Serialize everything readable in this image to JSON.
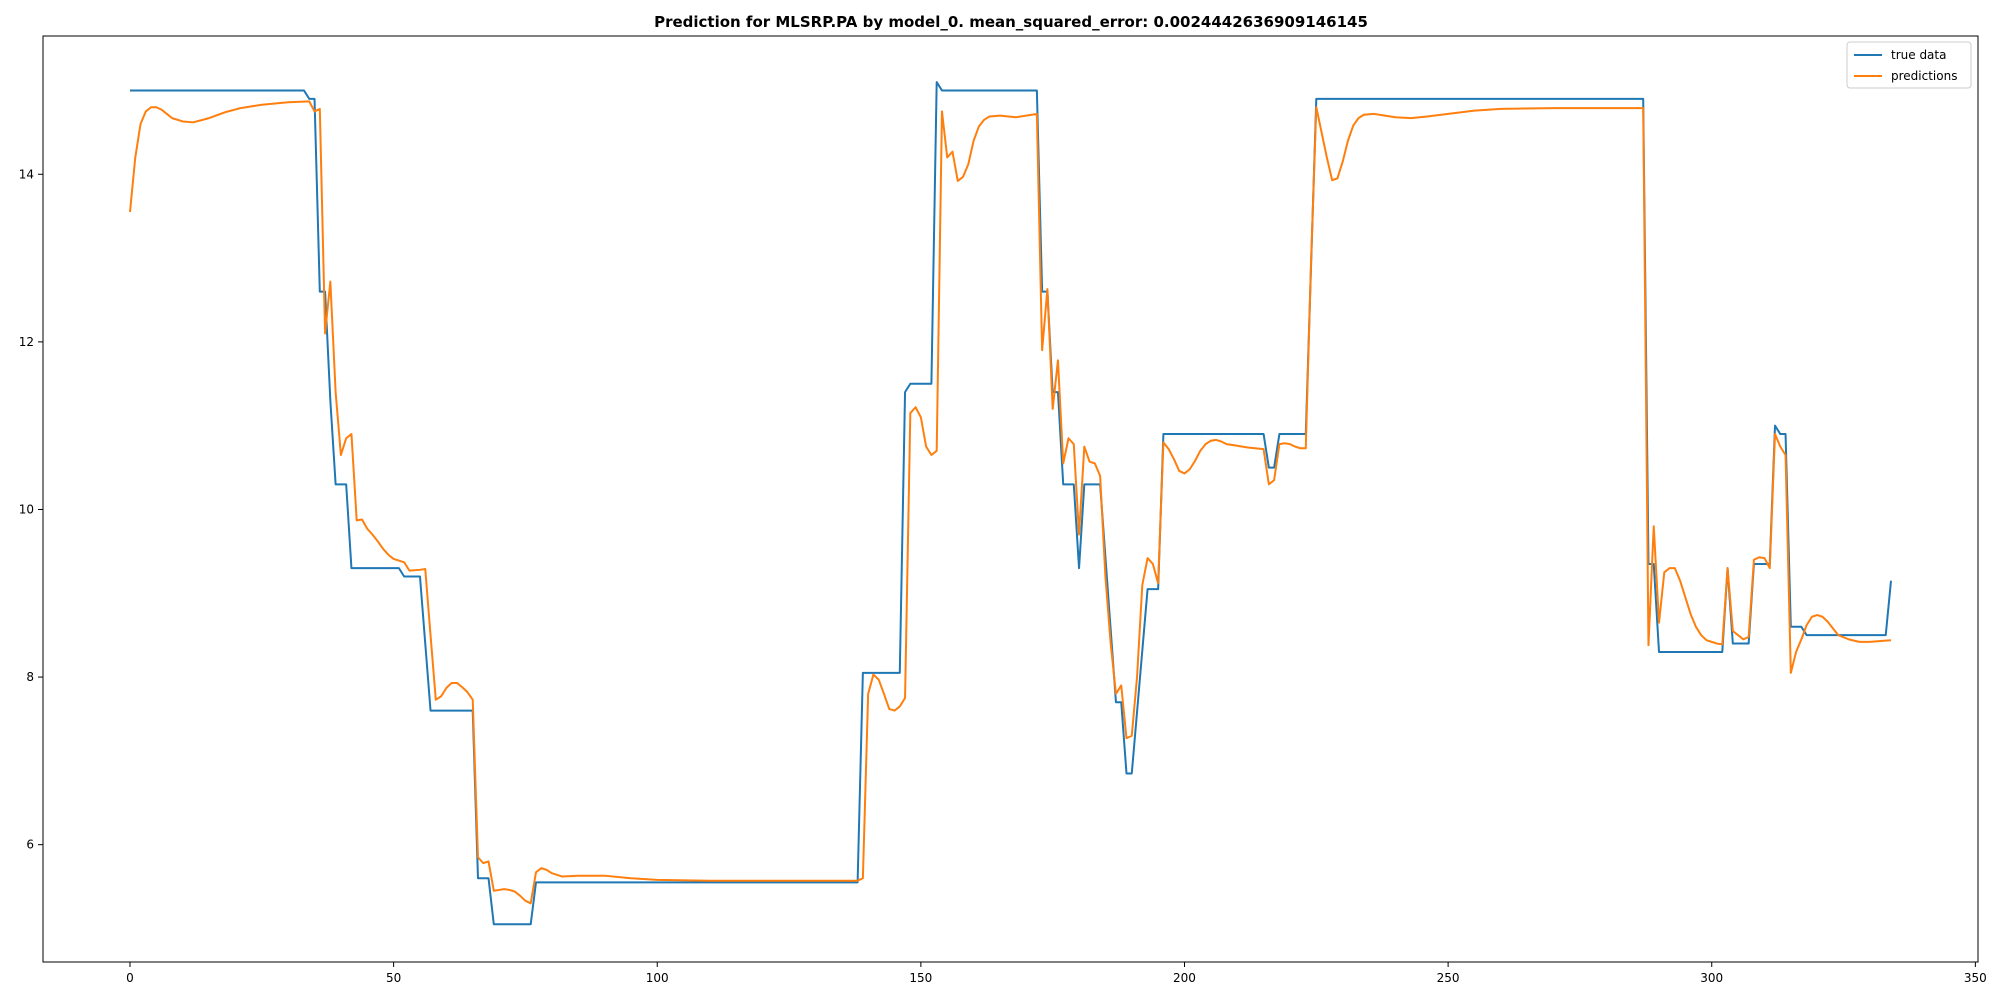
{
  "chart_data": {
    "type": "line",
    "title": "Prediction for MLSRP.PA by model_0. mean_squared_error: 0.0024442636909146145",
    "xlabel": "",
    "ylabel": "",
    "xlim": [
      -16.5,
      350.5
    ],
    "ylim": [
      4.6,
      15.65
    ],
    "x_ticks": [
      0,
      50,
      100,
      150,
      200,
      250,
      300,
      350
    ],
    "y_ticks": [
      6,
      8,
      10,
      12,
      14
    ],
    "grid": false,
    "legend_position": "top-right",
    "series": [
      {
        "name": "true data",
        "color": "#1f77b4",
        "points": [
          [
            0,
            15.0
          ],
          [
            33,
            15.0
          ],
          [
            34,
            14.9
          ],
          [
            35,
            14.9
          ],
          [
            36,
            12.6
          ],
          [
            37,
            12.6
          ],
          [
            38,
            11.3
          ],
          [
            39,
            10.3
          ],
          [
            41,
            10.3
          ],
          [
            42,
            9.3
          ],
          [
            51,
            9.3
          ],
          [
            52,
            9.2
          ],
          [
            55,
            9.2
          ],
          [
            57,
            7.6
          ],
          [
            65,
            7.6
          ],
          [
            66,
            5.6
          ],
          [
            68,
            5.6
          ],
          [
            69,
            5.05
          ],
          [
            76,
            5.05
          ],
          [
            77,
            5.55
          ],
          [
            138,
            5.55
          ],
          [
            139,
            8.05
          ],
          [
            146,
            8.05
          ],
          [
            147,
            11.4
          ],
          [
            148,
            11.5
          ],
          [
            152,
            11.5
          ],
          [
            153,
            15.1
          ],
          [
            154,
            15.0
          ],
          [
            172,
            15.0
          ],
          [
            173,
            12.6
          ],
          [
            174,
            12.6
          ],
          [
            175,
            11.4
          ],
          [
            176,
            11.4
          ],
          [
            177,
            10.3
          ],
          [
            179,
            10.3
          ],
          [
            180,
            9.3
          ],
          [
            181,
            10.3
          ],
          [
            184,
            10.3
          ],
          [
            187,
            7.7
          ],
          [
            188,
            7.7
          ],
          [
            189,
            6.85
          ],
          [
            190,
            6.85
          ],
          [
            193,
            9.05
          ],
          [
            195,
            9.05
          ],
          [
            196,
            10.9
          ],
          [
            215,
            10.9
          ],
          [
            216,
            10.5
          ],
          [
            217,
            10.5
          ],
          [
            218,
            10.9
          ],
          [
            223,
            10.9
          ],
          [
            225,
            14.9
          ],
          [
            287,
            14.9
          ],
          [
            288,
            9.35
          ],
          [
            289,
            9.35
          ],
          [
            290,
            8.3
          ],
          [
            302,
            8.3
          ],
          [
            303,
            9.3
          ],
          [
            304,
            8.4
          ],
          [
            307,
            8.4
          ],
          [
            308,
            9.35
          ],
          [
            311,
            9.35
          ],
          [
            312,
            11.0
          ],
          [
            313,
            10.9
          ],
          [
            314,
            10.9
          ],
          [
            315,
            8.6
          ],
          [
            317,
            8.6
          ],
          [
            318,
            8.5
          ],
          [
            333,
            8.5
          ],
          [
            334,
            9.15
          ]
        ]
      },
      {
        "name": "predictions",
        "color": "#ff7f0e",
        "points": [
          [
            0,
            13.55
          ],
          [
            1,
            14.2
          ],
          [
            2,
            14.6
          ],
          [
            3,
            14.75
          ],
          [
            4,
            14.8
          ],
          [
            5,
            14.8
          ],
          [
            6,
            14.77
          ],
          [
            7,
            14.72
          ],
          [
            8,
            14.67
          ],
          [
            10,
            14.63
          ],
          [
            12,
            14.62
          ],
          [
            15,
            14.67
          ],
          [
            18,
            14.74
          ],
          [
            21,
            14.79
          ],
          [
            25,
            14.83
          ],
          [
            30,
            14.86
          ],
          [
            34,
            14.87
          ],
          [
            35,
            14.75
          ],
          [
            36,
            14.78
          ],
          [
            37,
            12.1
          ],
          [
            38,
            12.72
          ],
          [
            39,
            11.4
          ],
          [
            40,
            10.65
          ],
          [
            41,
            10.85
          ],
          [
            42,
            10.9
          ],
          [
            43,
            9.87
          ],
          [
            44,
            9.88
          ],
          [
            45,
            9.77
          ],
          [
            46,
            9.7
          ],
          [
            47,
            9.62
          ],
          [
            48,
            9.53
          ],
          [
            49,
            9.46
          ],
          [
            50,
            9.41
          ],
          [
            51,
            9.39
          ],
          [
            52,
            9.37
          ],
          [
            53,
            9.27
          ],
          [
            55,
            9.28
          ],
          [
            56,
            9.29
          ],
          [
            57,
            8.5
          ],
          [
            58,
            7.73
          ],
          [
            59,
            7.77
          ],
          [
            60,
            7.87
          ],
          [
            61,
            7.93
          ],
          [
            62,
            7.93
          ],
          [
            63,
            7.88
          ],
          [
            64,
            7.82
          ],
          [
            65,
            7.73
          ],
          [
            66,
            5.85
          ],
          [
            67,
            5.78
          ],
          [
            68,
            5.8
          ],
          [
            69,
            5.45
          ],
          [
            70,
            5.46
          ],
          [
            71,
            5.47
          ],
          [
            72,
            5.46
          ],
          [
            73,
            5.44
          ],
          [
            74,
            5.39
          ],
          [
            75,
            5.33
          ],
          [
            76,
            5.3
          ],
          [
            77,
            5.67
          ],
          [
            78,
            5.72
          ],
          [
            79,
            5.7
          ],
          [
            80,
            5.66
          ],
          [
            82,
            5.62
          ],
          [
            85,
            5.63
          ],
          [
            90,
            5.63
          ],
          [
            95,
            5.6
          ],
          [
            100,
            5.58
          ],
          [
            110,
            5.57
          ],
          [
            130,
            5.57
          ],
          [
            138,
            5.57
          ],
          [
            139,
            5.6
          ],
          [
            140,
            7.8
          ],
          [
            141,
            8.03
          ],
          [
            142,
            7.97
          ],
          [
            143,
            7.8
          ],
          [
            144,
            7.62
          ],
          [
            145,
            7.6
          ],
          [
            146,
            7.65
          ],
          [
            147,
            7.75
          ],
          [
            148,
            11.15
          ],
          [
            149,
            11.22
          ],
          [
            150,
            11.1
          ],
          [
            151,
            10.75
          ],
          [
            152,
            10.65
          ],
          [
            153,
            10.7
          ],
          [
            154,
            14.75
          ],
          [
            155,
            14.2
          ],
          [
            156,
            14.27
          ],
          [
            157,
            13.92
          ],
          [
            158,
            13.97
          ],
          [
            159,
            14.12
          ],
          [
            160,
            14.4
          ],
          [
            161,
            14.57
          ],
          [
            162,
            14.65
          ],
          [
            163,
            14.69
          ],
          [
            165,
            14.7
          ],
          [
            168,
            14.68
          ],
          [
            171,
            14.71
          ],
          [
            172,
            14.72
          ],
          [
            173,
            11.9
          ],
          [
            174,
            12.63
          ],
          [
            175,
            11.2
          ],
          [
            176,
            11.78
          ],
          [
            177,
            10.55
          ],
          [
            178,
            10.85
          ],
          [
            179,
            10.78
          ],
          [
            180,
            9.7
          ],
          [
            181,
            10.75
          ],
          [
            182,
            10.57
          ],
          [
            183,
            10.55
          ],
          [
            184,
            10.4
          ],
          [
            185,
            9.2
          ],
          [
            186,
            8.4
          ],
          [
            187,
            7.8
          ],
          [
            188,
            7.9
          ],
          [
            189,
            7.27
          ],
          [
            190,
            7.3
          ],
          [
            191,
            8.0
          ],
          [
            192,
            9.1
          ],
          [
            193,
            9.42
          ],
          [
            194,
            9.35
          ],
          [
            195,
            9.12
          ],
          [
            196,
            10.8
          ],
          [
            197,
            10.72
          ],
          [
            198,
            10.6
          ],
          [
            199,
            10.46
          ],
          [
            200,
            10.43
          ],
          [
            201,
            10.48
          ],
          [
            202,
            10.58
          ],
          [
            203,
            10.7
          ],
          [
            204,
            10.78
          ],
          [
            205,
            10.82
          ],
          [
            206,
            10.83
          ],
          [
            207,
            10.81
          ],
          [
            208,
            10.78
          ],
          [
            210,
            10.76
          ],
          [
            212,
            10.74
          ],
          [
            215,
            10.72
          ],
          [
            216,
            10.3
          ],
          [
            217,
            10.35
          ],
          [
            218,
            10.78
          ],
          [
            219,
            10.79
          ],
          [
            220,
            10.78
          ],
          [
            221,
            10.75
          ],
          [
            222,
            10.73
          ],
          [
            223,
            10.73
          ],
          [
            224,
            12.95
          ],
          [
            225,
            14.8
          ],
          [
            226,
            14.5
          ],
          [
            227,
            14.2
          ],
          [
            228,
            13.93
          ],
          [
            229,
            13.95
          ],
          [
            230,
            14.15
          ],
          [
            231,
            14.4
          ],
          [
            232,
            14.58
          ],
          [
            233,
            14.67
          ],
          [
            234,
            14.71
          ],
          [
            236,
            14.72
          ],
          [
            238,
            14.7
          ],
          [
            240,
            14.68
          ],
          [
            243,
            14.67
          ],
          [
            246,
            14.69
          ],
          [
            250,
            14.72
          ],
          [
            255,
            14.76
          ],
          [
            260,
            14.78
          ],
          [
            270,
            14.79
          ],
          [
            280,
            14.79
          ],
          [
            287,
            14.79
          ],
          [
            288,
            8.38
          ],
          [
            289,
            9.8
          ],
          [
            290,
            8.65
          ],
          [
            291,
            9.25
          ],
          [
            292,
            9.3
          ],
          [
            293,
            9.3
          ],
          [
            294,
            9.15
          ],
          [
            295,
            8.95
          ],
          [
            296,
            8.75
          ],
          [
            297,
            8.6
          ],
          [
            298,
            8.5
          ],
          [
            299,
            8.44
          ],
          [
            300,
            8.42
          ],
          [
            301,
            8.4
          ],
          [
            302,
            8.39
          ],
          [
            303,
            9.3
          ],
          [
            304,
            8.55
          ],
          [
            305,
            8.5
          ],
          [
            306,
            8.45
          ],
          [
            307,
            8.48
          ],
          [
            308,
            9.4
          ],
          [
            309,
            9.43
          ],
          [
            310,
            9.42
          ],
          [
            311,
            9.3
          ],
          [
            312,
            10.9
          ],
          [
            313,
            10.75
          ],
          [
            314,
            10.65
          ],
          [
            315,
            8.05
          ],
          [
            316,
            8.3
          ],
          [
            317,
            8.45
          ],
          [
            318,
            8.62
          ],
          [
            319,
            8.72
          ],
          [
            320,
            8.74
          ],
          [
            321,
            8.72
          ],
          [
            322,
            8.66
          ],
          [
            323,
            8.58
          ],
          [
            324,
            8.5
          ],
          [
            326,
            8.45
          ],
          [
            328,
            8.42
          ],
          [
            330,
            8.42
          ],
          [
            332,
            8.43
          ],
          [
            334,
            8.44
          ]
        ]
      }
    ]
  }
}
